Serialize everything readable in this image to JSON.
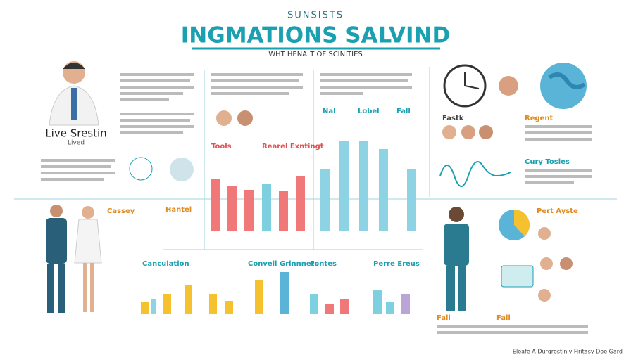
{
  "header": {
    "kicker": "SUNSISTS",
    "title": "INGMATIONS SALVIND",
    "subtitle": "WHT HENALT OF SCINITIES"
  },
  "profile": {
    "name": "Live Srestin",
    "role": "Lived"
  },
  "sections": {
    "tools": "Tools",
    "rearel": "Rearel Exntingt",
    "nal": "Nal",
    "lobel": "Lobel",
    "fall_top": "Fall",
    "fastk": "Fastk",
    "regent": "Regent",
    "cury": "Cury Tosles",
    "cassey": "Cassey",
    "hantel": "Hantel",
    "canculation": "Canculation",
    "convell": "Convell Grinnnets",
    "fontes": "Fontes",
    "perre": "Perre Ereus",
    "fall_mid": "Fall",
    "fall_right": "Fall",
    "pert": "Pert Ayste"
  },
  "footer": "Eleafe A Durgrestinly Firitasy Doe Gard"
}
